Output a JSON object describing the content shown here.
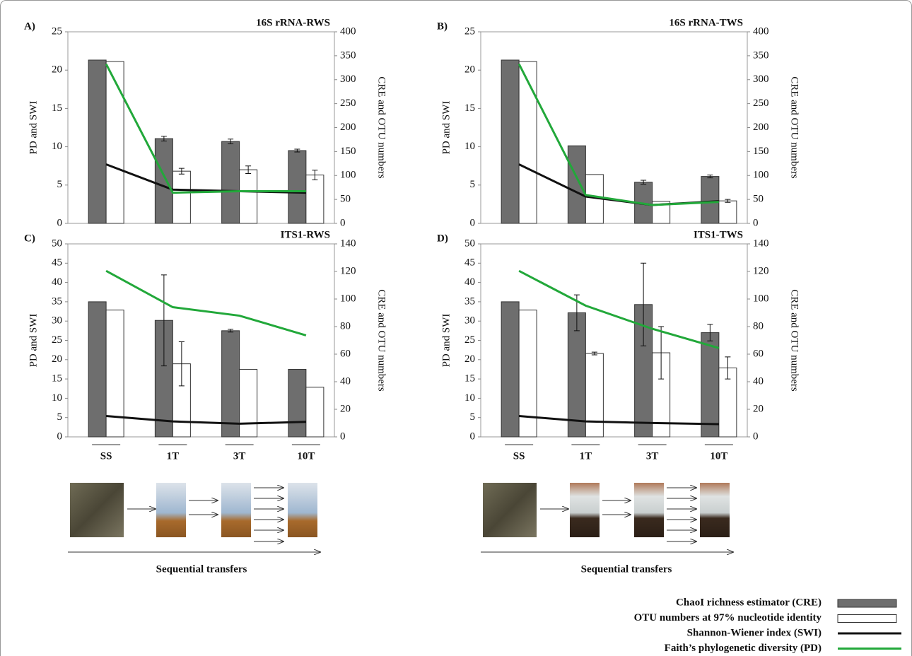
{
  "legend": [
    {
      "name": "ChaoI richness estimator (CRE)",
      "color": "#6e6e6e",
      "kind": "bar"
    },
    {
      "name": "OTU numbers at 97% nucleotide identity",
      "color": "#ffffff",
      "kind": "bar"
    },
    {
      "name": "Shannon-Wiener index (SWI)",
      "color": "#111111",
      "kind": "line"
    },
    {
      "name": "Faith’s phylogenetic diversity (PD)",
      "color": "#22a83a",
      "kind": "line"
    }
  ],
  "captions": [
    "Sequential transfers",
    "Sequential transfers"
  ],
  "chart_data": [
    {
      "type": "combo",
      "label": "A)",
      "title": "16S rRNA-RWS",
      "ylabel": "PD and SWI",
      "y2label": "CRE and OTU numbers",
      "categories": [
        null,
        null,
        null,
        null
      ],
      "ylim": [
        0,
        25
      ],
      "yticks": [
        0,
        5,
        10,
        15,
        20,
        25
      ],
      "y2lim": [
        0,
        400
      ],
      "y2ticks": [
        0,
        50,
        100,
        150,
        200,
        250,
        300,
        350,
        400
      ],
      "series": [
        {
          "type": "bar",
          "axis": "y2",
          "values": [
            341,
            177,
            171,
            152
          ],
          "errors": [
            null,
            5,
            5,
            3
          ]
        },
        {
          "type": "bar",
          "axis": "y2",
          "values": [
            338,
            109,
            112,
            101
          ],
          "errors": [
            null,
            6,
            8,
            10
          ]
        },
        {
          "type": "line",
          "axis": "y",
          "values": [
            7.7,
            4.4,
            4.2,
            4.0
          ]
        },
        {
          "type": "line",
          "axis": "y",
          "values": [
            20.8,
            4.0,
            4.2,
            4.2
          ]
        }
      ]
    },
    {
      "type": "combo",
      "label": "B)",
      "title": "16S rRNA-TWS",
      "ylabel": "PD and SWI",
      "y2label": "CRE and OTU numbers",
      "categories": [
        null,
        null,
        null,
        null
      ],
      "ylim": [
        0,
        25
      ],
      "yticks": [
        0,
        5,
        10,
        15,
        20,
        25
      ],
      "y2lim": [
        0,
        400
      ],
      "y2ticks": [
        0,
        50,
        100,
        150,
        200,
        250,
        300,
        350,
        400
      ],
      "series": [
        {
          "type": "bar",
          "axis": "y2",
          "values": [
            341,
            162,
            86,
            98
          ],
          "errors": [
            null,
            null,
            4,
            3
          ]
        },
        {
          "type": "bar",
          "axis": "y2",
          "values": [
            338,
            102,
            46,
            47
          ],
          "errors": [
            null,
            null,
            null,
            3
          ]
        },
        {
          "type": "line",
          "axis": "y",
          "values": [
            7.7,
            3.5,
            2.4,
            2.9
          ]
        },
        {
          "type": "line",
          "axis": "y",
          "values": [
            20.8,
            3.7,
            2.4,
            2.8
          ]
        }
      ]
    },
    {
      "type": "combo",
      "label": "C)",
      "title": "ITS1-RWS",
      "ylabel": "PD and SWI",
      "y2label": "CRE and OTU numbers",
      "categories": [
        "SS",
        "1T",
        "3T",
        "10T"
      ],
      "ylim": [
        0,
        50
      ],
      "yticks": [
        0,
        5,
        10,
        15,
        20,
        25,
        30,
        35,
        40,
        45,
        50
      ],
      "y2lim": [
        0,
        140
      ],
      "y2ticks": [
        0,
        20,
        40,
        60,
        80,
        100,
        120,
        140
      ],
      "series": [
        {
          "type": "bar",
          "axis": "y2",
          "values": [
            98,
            84.5,
            77,
            49
          ],
          "errors": [
            null,
            33,
            1,
            null
          ]
        },
        {
          "type": "bar",
          "axis": "y2",
          "values": [
            92,
            53,
            49,
            36
          ],
          "errors": [
            null,
            16,
            null,
            null
          ]
        },
        {
          "type": "line",
          "axis": "y",
          "values": [
            5.4,
            4.0,
            3.4,
            3.9
          ]
        },
        {
          "type": "line",
          "axis": "y",
          "values": [
            43,
            33.6,
            31.4,
            26.3
          ]
        }
      ]
    },
    {
      "type": "combo",
      "label": "D)",
      "title": "ITS1-TWS",
      "ylabel": "PD and SWI",
      "y2label": "CRE and OTU numbers",
      "categories": [
        "SS",
        "1T",
        "3T",
        "10T"
      ],
      "ylim": [
        0,
        50
      ],
      "yticks": [
        0,
        5,
        10,
        15,
        20,
        25,
        30,
        35,
        40,
        45,
        50
      ],
      "y2lim": [
        0,
        140
      ],
      "y2ticks": [
        0,
        20,
        40,
        60,
        80,
        100,
        120,
        140
      ],
      "series": [
        {
          "type": "bar",
          "axis": "y2",
          "values": [
            98,
            90,
            96,
            75.6
          ],
          "errors": [
            null,
            13,
            30,
            6
          ]
        },
        {
          "type": "bar",
          "axis": "y2",
          "values": [
            92,
            60.5,
            61,
            50
          ],
          "errors": [
            null,
            1,
            19,
            8
          ]
        },
        {
          "type": "line",
          "axis": "y",
          "values": [
            5.4,
            4.0,
            3.6,
            3.3
          ]
        },
        {
          "type": "line",
          "axis": "y",
          "values": [
            43,
            34,
            28,
            23
          ]
        }
      ]
    }
  ]
}
